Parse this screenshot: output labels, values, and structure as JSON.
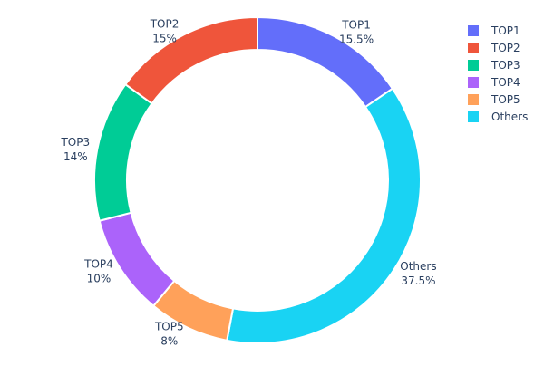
{
  "chart_data": {
    "type": "pie",
    "hole": true,
    "direction": "clockwise",
    "categories": [
      "TOP1",
      "Others",
      "TOP5",
      "TOP4",
      "TOP3",
      "TOP2"
    ],
    "values": [
      15.5,
      37.5,
      8,
      10,
      14,
      15
    ],
    "value_labels": [
      "15.5%",
      "37.5%",
      "8%",
      "10%",
      "14%",
      "15%"
    ],
    "colors": [
      "#636efa",
      "#19d3f3",
      "#FFA15A",
      "#ab63fa",
      "#00cc96",
      "#EF553B"
    ],
    "legend": {
      "placement": "top-right",
      "entries": [
        {
          "label": "TOP1",
          "color": "#636efa"
        },
        {
          "label": "TOP2",
          "color": "#EF553B"
        },
        {
          "label": "TOP3",
          "color": "#00cc96"
        },
        {
          "label": "TOP4",
          "color": "#ab63fa"
        },
        {
          "label": "TOP5",
          "color": "#FFA15A"
        },
        {
          "label": "Others",
          "color": "#19d3f3"
        }
      ]
    }
  }
}
